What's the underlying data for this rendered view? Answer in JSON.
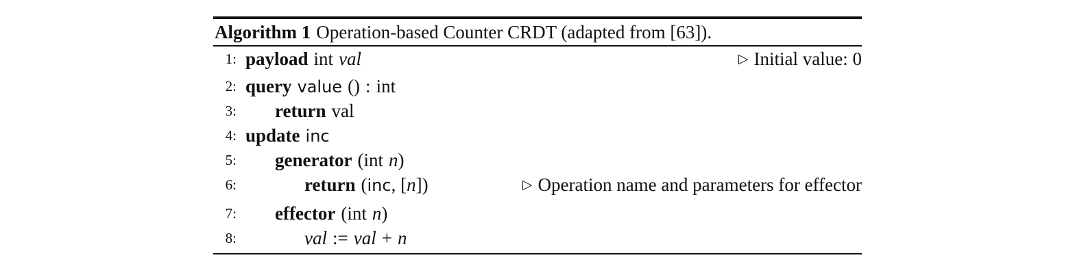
{
  "algorithm": {
    "label": "Algorithm 1",
    "title": "Operation-based Counter CRDT (adapted from [63]).",
    "lines": [
      {
        "no": "1:",
        "kw": "payload",
        "type": "int",
        "name": "val",
        "comment_marker": "▷",
        "comment": "Initial value: 0"
      },
      {
        "no": "2:",
        "kw": "query",
        "name": "value",
        "parens": "()",
        "colon": ":",
        "type": "int"
      },
      {
        "no": "3:",
        "kw": "return",
        "value": "val"
      },
      {
        "no": "4:",
        "kw": "update",
        "name": "inc"
      },
      {
        "no": "5:",
        "kw": "generator",
        "open": "(int",
        "arg": "n",
        "close": ")"
      },
      {
        "no": "6:",
        "kw": "return",
        "open": "(",
        "name": "inc",
        "sep": ", [",
        "arg": "n",
        "close": "])",
        "comment_marker": "▷",
        "comment": "Operation name and parameters for effector"
      },
      {
        "no": "7:",
        "kw": "effector",
        "open": "(int",
        "arg": "n",
        "close": ")"
      },
      {
        "no": "8:",
        "lhs": "val",
        "assign": ":=",
        "rhs": "val",
        "plus": "+",
        "arg": "n"
      }
    ]
  }
}
